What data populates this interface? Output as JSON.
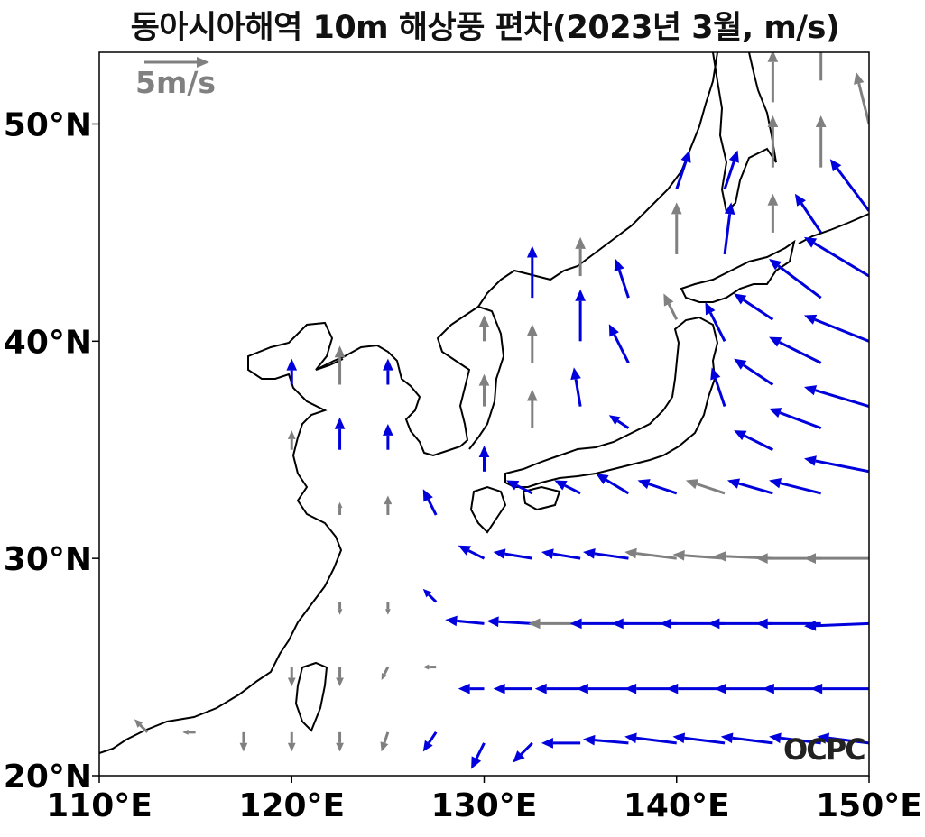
{
  "title": "동아시아해역 10m 해상풍 편차(2023년 3월, m/s)",
  "reference_vector": {
    "label": "5m/s",
    "speed": 5,
    "color": "#808080"
  },
  "logo": "OCPC",
  "axes": {
    "lon_range": [
      110,
      150
    ],
    "lat_range": [
      20,
      53.3
    ],
    "x_ticks": [
      "110°E",
      "120°E",
      "130°E",
      "140°E",
      "150°E"
    ],
    "y_ticks": [
      "20°N",
      "30°N",
      "40°N",
      "50°N"
    ],
    "x_tick_values": [
      110,
      120,
      130,
      140,
      150
    ],
    "y_tick_values": [
      20,
      30,
      40,
      50
    ]
  },
  "colors": {
    "significant": "#0000dd",
    "not_significant": "#808080",
    "coast": "#000000"
  },
  "chart_data": {
    "type": "vector_field",
    "units": "m/s",
    "description_fields": [
      "lon",
      "lat",
      "u",
      "v",
      "significant"
    ],
    "vectors": [
      [
        120,
        38,
        0,
        2,
        1
      ],
      [
        122.5,
        38,
        0,
        3,
        0
      ],
      [
        125,
        38,
        0,
        2,
        1
      ],
      [
        120,
        35,
        0,
        1.5,
        0
      ],
      [
        122.5,
        35,
        0,
        2.5,
        1
      ],
      [
        125,
        35,
        0,
        2,
        1
      ],
      [
        122.5,
        32,
        0,
        1,
        0
      ],
      [
        125,
        32,
        0,
        1.5,
        0
      ],
      [
        127.5,
        32,
        -1,
        2,
        1
      ],
      [
        130,
        40,
        0,
        2,
        0
      ],
      [
        130,
        37,
        0,
        2.5,
        0
      ],
      [
        130,
        34,
        0,
        2,
        1
      ],
      [
        132.5,
        42,
        0,
        4,
        1
      ],
      [
        132.5,
        39,
        0,
        3,
        0
      ],
      [
        132.5,
        36,
        0,
        3,
        0
      ],
      [
        135,
        43,
        0,
        3,
        0
      ],
      [
        135,
        40,
        0,
        4,
        1
      ],
      [
        135,
        37,
        -0.5,
        3,
        1
      ],
      [
        137.5,
        42,
        -1,
        3,
        1
      ],
      [
        137.5,
        39,
        -1.5,
        3,
        1
      ],
      [
        137.5,
        36,
        -1.5,
        1,
        1
      ],
      [
        140,
        47,
        1,
        3,
        1
      ],
      [
        140,
        44,
        0,
        4,
        0
      ],
      [
        140,
        41,
        -1,
        2,
        0
      ],
      [
        142.5,
        47,
        1,
        3,
        1
      ],
      [
        142.5,
        44,
        0.5,
        4,
        1
      ],
      [
        142.5,
        40,
        -1.5,
        3,
        1
      ],
      [
        142.5,
        37,
        -1,
        3,
        1
      ],
      [
        145,
        51,
        0,
        4,
        0
      ],
      [
        145,
        48,
        0,
        4,
        0
      ],
      [
        145,
        45,
        0,
        3,
        0
      ],
      [
        145,
        41,
        -3,
        2,
        1
      ],
      [
        145,
        38,
        -3,
        2,
        1
      ],
      [
        145,
        35,
        -3,
        1.5,
        1
      ],
      [
        147.5,
        52,
        0,
        4,
        0
      ],
      [
        147.5,
        48,
        0,
        4,
        0
      ],
      [
        147.5,
        45,
        -2,
        3,
        1
      ],
      [
        147.5,
        42,
        -4,
        3,
        1
      ],
      [
        147.5,
        39,
        -4,
        2,
        1
      ],
      [
        147.5,
        36,
        -4,
        1.5,
        1
      ],
      [
        150,
        50,
        -1,
        4,
        0
      ],
      [
        150,
        46,
        -3,
        4,
        1
      ],
      [
        150,
        43,
        -5,
        3,
        1
      ],
      [
        150,
        40,
        -5,
        2,
        1
      ],
      [
        150,
        37,
        -5,
        1.5,
        1
      ],
      [
        150,
        34,
        -5,
        1,
        1
      ],
      [
        132.5,
        33,
        -2,
        1,
        1
      ],
      [
        135,
        33,
        -2,
        1,
        1
      ],
      [
        137.5,
        33,
        -2.5,
        1.5,
        1
      ],
      [
        140,
        33,
        -3,
        1,
        1
      ],
      [
        142.5,
        33,
        -3,
        1,
        0
      ],
      [
        145,
        33,
        -3.5,
        1,
        1
      ],
      [
        147.5,
        33,
        -4,
        1,
        1
      ],
      [
        130,
        30,
        -2,
        1,
        1
      ],
      [
        132.5,
        30,
        -3,
        0.5,
        1
      ],
      [
        135,
        30,
        -3,
        0.5,
        1
      ],
      [
        137.5,
        30,
        -3.5,
        0.5,
        1
      ],
      [
        140,
        30,
        -4,
        0.5,
        0
      ],
      [
        142.5,
        30,
        -4,
        0.3,
        0
      ],
      [
        145,
        30,
        -4.5,
        0.2,
        0
      ],
      [
        147.5,
        30,
        -5,
        0,
        0
      ],
      [
        150,
        30,
        -5,
        0,
        0
      ],
      [
        130,
        27,
        -3,
        0.3,
        1
      ],
      [
        132.5,
        27,
        -3.5,
        0.2,
        1
      ],
      [
        135,
        27,
        -4,
        0,
        0
      ],
      [
        137.5,
        27,
        -4.5,
        0,
        1
      ],
      [
        140,
        27,
        -5,
        0,
        1
      ],
      [
        142.5,
        27,
        -5,
        0,
        1
      ],
      [
        145,
        27,
        -5,
        0,
        1
      ],
      [
        147.5,
        27,
        -5,
        0,
        1
      ],
      [
        150,
        27,
        -5,
        -0.2,
        1
      ],
      [
        130,
        24,
        -2,
        0,
        1
      ],
      [
        132.5,
        24,
        -3,
        0,
        1
      ],
      [
        135,
        24,
        -3.5,
        0,
        1
      ],
      [
        137.5,
        24,
        -4,
        0,
        1
      ],
      [
        140,
        24,
        -4,
        0,
        1
      ],
      [
        142.5,
        24,
        -4.5,
        0,
        1
      ],
      [
        145,
        24,
        -4.5,
        0,
        1
      ],
      [
        147.5,
        24,
        -4.5,
        0,
        1
      ],
      [
        150,
        24,
        -4.5,
        0,
        1
      ],
      [
        127.5,
        28,
        -1,
        1,
        1
      ],
      [
        127.5,
        25,
        -1,
        0,
        0
      ],
      [
        127.5,
        22,
        -1,
        -1.5,
        1
      ],
      [
        130,
        21.5,
        -1,
        -2,
        1
      ],
      [
        132.5,
        21.5,
        -1.5,
        -1.5,
        1
      ],
      [
        135,
        21.5,
        -3,
        0,
        1
      ],
      [
        137.5,
        21.5,
        -3.5,
        0.3,
        1
      ],
      [
        140,
        21.5,
        -4,
        0.5,
        1
      ],
      [
        142.5,
        21.5,
        -4,
        0.5,
        1
      ],
      [
        145,
        21.5,
        -4,
        0.5,
        1
      ],
      [
        147.5,
        21.5,
        -4,
        0.5,
        1
      ],
      [
        150,
        21.5,
        -4,
        0.5,
        1
      ],
      [
        122.5,
        28,
        0,
        -1,
        0
      ],
      [
        125,
        28,
        0,
        -1,
        0
      ],
      [
        120,
        25,
        0,
        -1.5,
        0
      ],
      [
        122.5,
        25,
        0,
        -1.5,
        0
      ],
      [
        125,
        25,
        -0.5,
        -1,
        0
      ],
      [
        117.5,
        22,
        0,
        -1.5,
        0
      ],
      [
        120,
        22,
        0,
        -1.5,
        0
      ],
      [
        122.5,
        22,
        0,
        -1.5,
        0
      ],
      [
        125,
        22,
        -0.5,
        -1.5,
        0
      ],
      [
        112.5,
        22,
        -1,
        1,
        0
      ],
      [
        115,
        22,
        -1,
        0,
        0
      ]
    ]
  }
}
